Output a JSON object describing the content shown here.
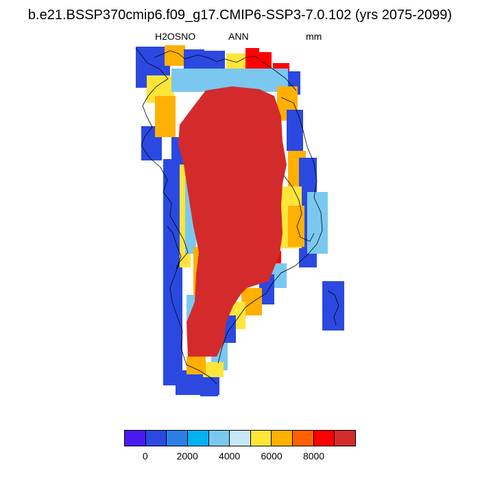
{
  "title": "b.e21.BSSP370cmip6.f09_g17.CMIP6-SSP3-7.0.102 (yrs 2075-2099)",
  "subtitle": {
    "variable": "H2OSNO",
    "season": "ANN",
    "units": "mm"
  },
  "colorbar": {
    "colors": [
      "#4a1af2",
      "#2b49e0",
      "#2c7ee6",
      "#03b0f2",
      "#7ac8f0",
      "#c7e9f7",
      "#ffe53a",
      "#ffb000",
      "#ff6100",
      "#ff0000",
      "#d32b2b"
    ],
    "labels": [
      "0",
      "2000",
      "4000",
      "6000",
      "8000"
    ]
  },
  "map_colors": {
    "ice_interior": "#d32b2b",
    "margin_dark_blue": "#2b49e0",
    "margin_light_blue": "#7ac8f0",
    "margin_yellow": "#ffe53a",
    "margin_orange": "#ffb000",
    "margin_red": "#ff0000",
    "coastline": "#000000"
  }
}
